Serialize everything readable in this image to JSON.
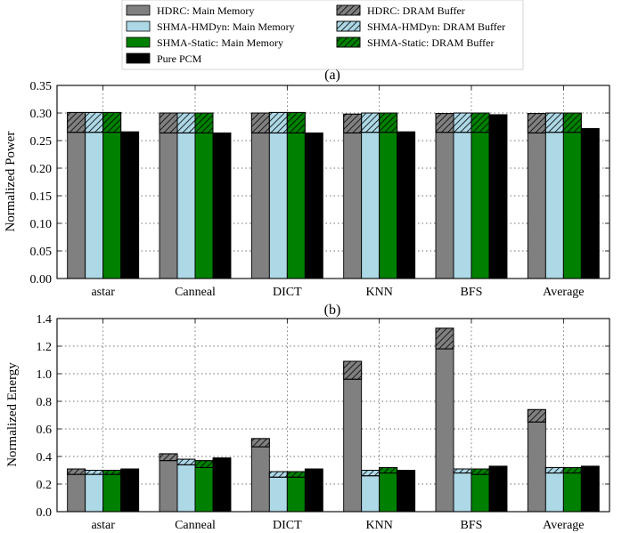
{
  "legend": {
    "items": [
      {
        "label": "HDRC: Main Memory",
        "color": "#808080",
        "hatch": false
      },
      {
        "label": "HDRC: DRAM Buffer",
        "color": "#808080",
        "hatch": true
      },
      {
        "label": "SHMA-HMDyn: Main Memory",
        "color": "#add8e6",
        "hatch": false
      },
      {
        "label": "SHMA-HMDyn: DRAM Buffer",
        "color": "#add8e6",
        "hatch": true
      },
      {
        "label": "SHMA-Static: Main Memory",
        "color": "#008000",
        "hatch": false
      },
      {
        "label": "SHMA-Static: DRAM Buffer",
        "color": "#008000",
        "hatch": true
      },
      {
        "label": "Pure PCM",
        "color": "#000000",
        "hatch": false
      }
    ]
  },
  "chart_data": [
    {
      "type": "bar",
      "subtitle": "(a)",
      "ylabel": "Normalized Power",
      "xlabel": "",
      "ylim": [
        0,
        0.35
      ],
      "yticks": [
        "0.00",
        "0.05",
        "0.10",
        "0.15",
        "0.20",
        "0.25",
        "0.30",
        "0.35"
      ],
      "grid": true,
      "stacked": true,
      "categories": [
        "astar",
        "Canneal",
        "DICT",
        "KNN",
        "BFS",
        "Average"
      ],
      "series": [
        {
          "name": "HDRC",
          "color": "#808080",
          "main_memory": [
            0.265,
            0.264,
            0.264,
            0.264,
            0.265,
            0.264
          ],
          "dram_buffer": [
            0.036,
            0.036,
            0.036,
            0.034,
            0.034,
            0.035
          ]
        },
        {
          "name": "SHMA-HMDyn",
          "color": "#add8e6",
          "main_memory": [
            0.265,
            0.264,
            0.264,
            0.265,
            0.265,
            0.265
          ],
          "dram_buffer": [
            0.036,
            0.036,
            0.037,
            0.035,
            0.035,
            0.035
          ]
        },
        {
          "name": "SHMA-Static",
          "color": "#008000",
          "main_memory": [
            0.265,
            0.264,
            0.264,
            0.265,
            0.265,
            0.265
          ],
          "dram_buffer": [
            0.036,
            0.036,
            0.037,
            0.035,
            0.035,
            0.035
          ]
        },
        {
          "name": "Pure PCM",
          "color": "#000000",
          "main_memory": [
            0.266,
            0.264,
            0.264,
            0.266,
            0.297,
            0.272
          ],
          "dram_buffer": [
            0,
            0,
            0,
            0,
            0,
            0
          ]
        }
      ]
    },
    {
      "type": "bar",
      "subtitle": "(b)",
      "ylabel": "Normalized Energy",
      "xlabel": "",
      "ylim": [
        0,
        1.4
      ],
      "yticks": [
        "0.0",
        "0.2",
        "0.4",
        "0.6",
        "0.8",
        "1.0",
        "1.2",
        "1.4"
      ],
      "grid": true,
      "stacked": true,
      "categories": [
        "astar",
        "Canneal",
        "DICT",
        "KNN",
        "BFS",
        "Average"
      ],
      "series": [
        {
          "name": "HDRC",
          "color": "#808080",
          "main_memory": [
            0.27,
            0.37,
            0.47,
            0.96,
            1.18,
            0.65
          ],
          "dram_buffer": [
            0.04,
            0.05,
            0.06,
            0.13,
            0.15,
            0.09
          ]
        },
        {
          "name": "SHMA-HMDyn",
          "color": "#add8e6",
          "main_memory": [
            0.27,
            0.34,
            0.25,
            0.26,
            0.28,
            0.28
          ],
          "dram_buffer": [
            0.03,
            0.04,
            0.04,
            0.04,
            0.03,
            0.04
          ]
        },
        {
          "name": "SHMA-Static",
          "color": "#008000",
          "main_memory": [
            0.27,
            0.32,
            0.25,
            0.28,
            0.27,
            0.28
          ],
          "dram_buffer": [
            0.03,
            0.05,
            0.04,
            0.04,
            0.04,
            0.04
          ]
        },
        {
          "name": "Pure PCM",
          "color": "#000000",
          "main_memory": [
            0.31,
            0.39,
            0.31,
            0.3,
            0.33,
            0.33
          ],
          "dram_buffer": [
            0,
            0,
            0,
            0,
            0,
            0
          ]
        }
      ]
    }
  ]
}
